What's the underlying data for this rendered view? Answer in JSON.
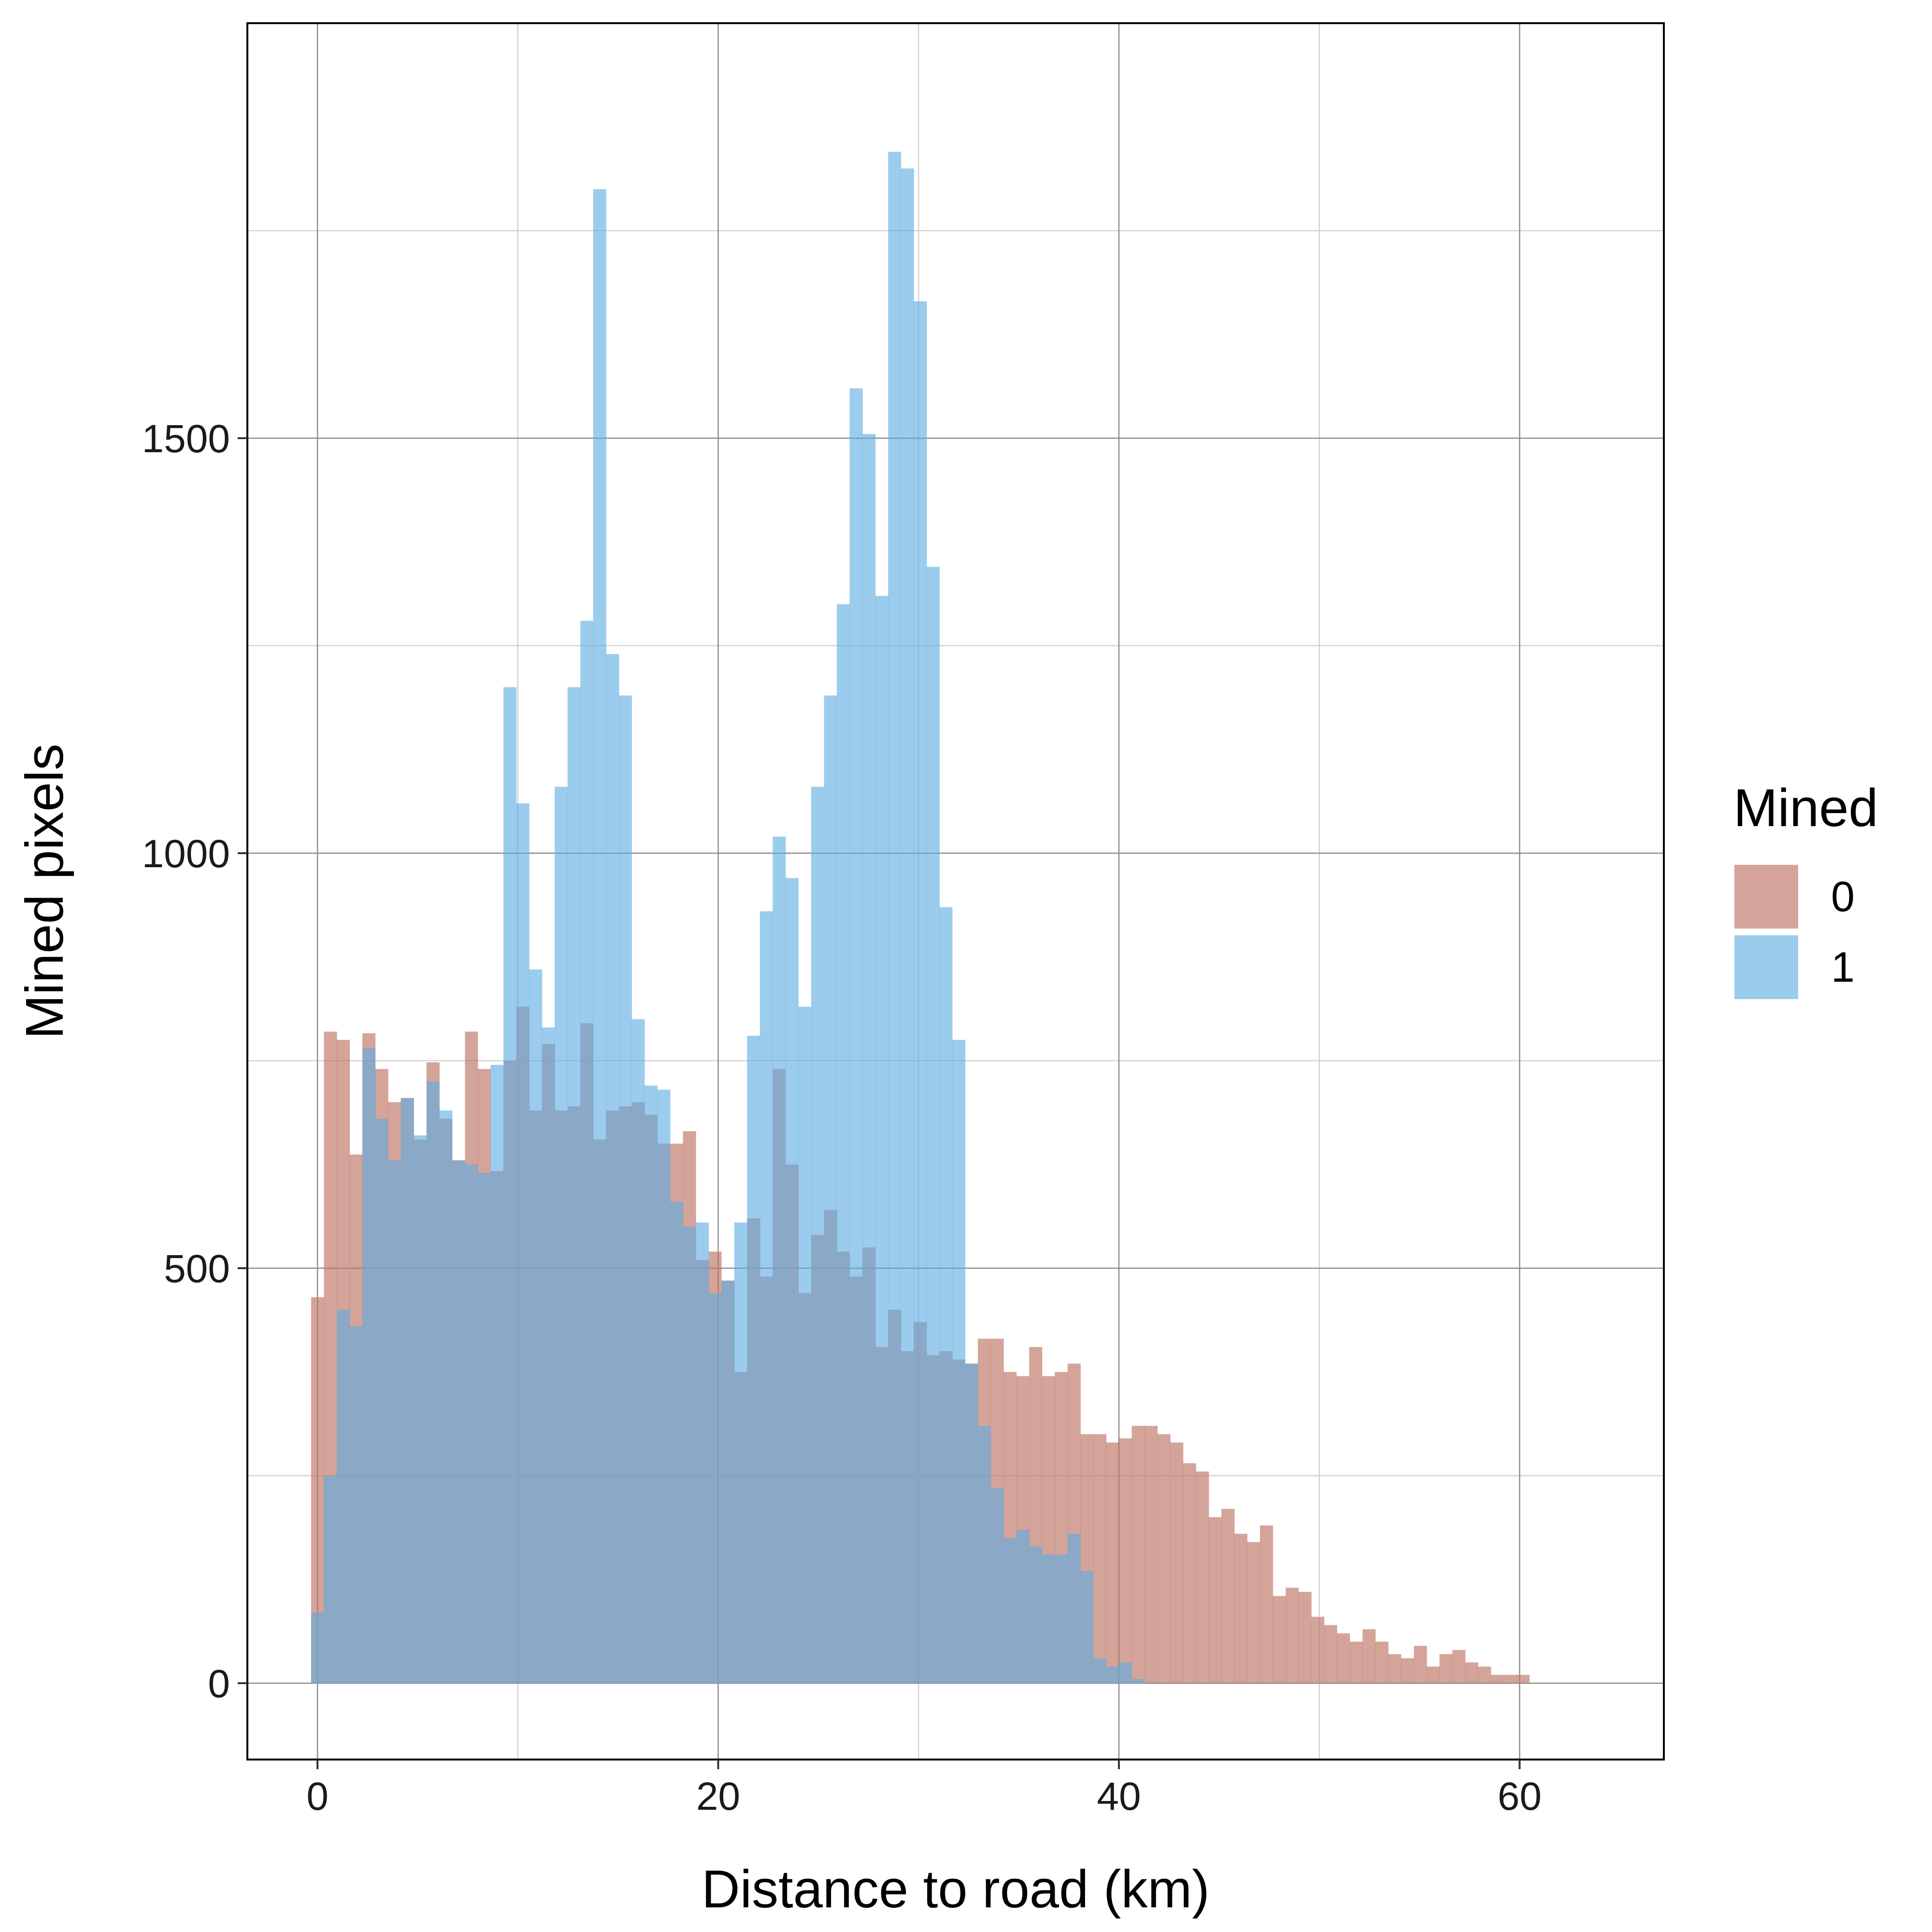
{
  "chart_data": {
    "type": "bar",
    "subtype": "overlapping histogram",
    "title": "",
    "xlabel": "Distance to road (km)",
    "ylabel": "Mined pixels",
    "xlim": [
      -3.5,
      67.2
    ],
    "ylim": [
      -92,
      2000
    ],
    "x_ticks": [
      0,
      20,
      40,
      60
    ],
    "x_tick_labels": [
      "0",
      "20",
      "40",
      "60"
    ],
    "y_ticks": [
      0,
      500,
      1000,
      1500
    ],
    "y_tick_labels": [
      "0",
      "500",
      "1000",
      "1500"
    ],
    "grid": true,
    "bin_start": -0.32,
    "bin_width": 0.64,
    "legend": {
      "title": "Mined",
      "position": "right",
      "entries": [
        {
          "label": "0",
          "color": "#c0796a"
        },
        {
          "label": "1",
          "color": "#5dade2"
        }
      ]
    },
    "series": [
      {
        "name": "0",
        "color": "#c0796a",
        "opacity": 0.68,
        "values": [
          465,
          785,
          775,
          637,
          783,
          740,
          700,
          705,
          655,
          748,
          680,
          630,
          785,
          740,
          617,
          750,
          815,
          690,
          770,
          690,
          695,
          795,
          655,
          690,
          695,
          700,
          685,
          650,
          650,
          665,
          510,
          520,
          485,
          375,
          560,
          490,
          740,
          625,
          470,
          540,
          570,
          520,
          490,
          525,
          405,
          450,
          400,
          435,
          395,
          400,
          390,
          385,
          415,
          415,
          375,
          370,
          405,
          370,
          375,
          385,
          300,
          300,
          290,
          295,
          310,
          310,
          300,
          290,
          265,
          255,
          200,
          210,
          180,
          170,
          190,
          105,
          115,
          110,
          80,
          70,
          60,
          50,
          65,
          50,
          35,
          30,
          45,
          20,
          35,
          40,
          25,
          20,
          10,
          10,
          10
        ]
      },
      {
        "name": "1",
        "color": "#5dade2",
        "opacity": 0.62,
        "values": [
          85,
          250,
          450,
          430,
          765,
          680,
          630,
          705,
          660,
          725,
          690,
          630,
          625,
          615,
          745,
          1200,
          1060,
          860,
          790,
          1080,
          1200,
          1280,
          1800,
          1240,
          1190,
          800,
          720,
          715,
          580,
          550,
          555,
          470,
          485,
          555,
          780,
          930,
          1020,
          970,
          815,
          1080,
          1190,
          1300,
          1560,
          1505,
          1310,
          1845,
          1825,
          1665,
          1345,
          935,
          775,
          385,
          310,
          235,
          175,
          185,
          165,
          155,
          155,
          180,
          135,
          30,
          20,
          25,
          5
        ]
      }
    ]
  }
}
